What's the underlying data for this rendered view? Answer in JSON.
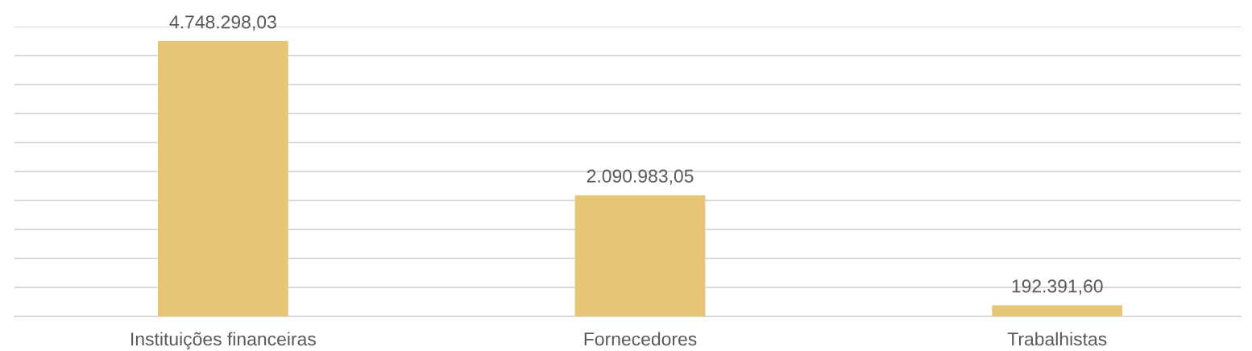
{
  "chart_data": {
    "type": "bar",
    "categories": [
      "Instituições financeiras",
      "Fornecedores",
      "Trabalhistas"
    ],
    "values": [
      4748298.03,
      2090983.05,
      192391.6
    ],
    "value_labels": [
      "4.748.298,03",
      "2.090.983,05",
      "192.391,60"
    ],
    "color": "#e6c577",
    "ylim": [
      0,
      5000000
    ],
    "yticks": [
      {
        "value": 0,
        "label": null
      },
      {
        "value": 500000,
        "label": null
      },
      {
        "value": 1000000,
        "label": null
      },
      {
        "value": 1500000,
        "label": null
      },
      {
        "value": 2000000,
        "label": null
      },
      {
        "value": 2500000,
        "label": null
      },
      {
        "value": 3000000,
        "label": null
      },
      {
        "value": 3500000,
        "label": null
      },
      {
        "value": 4000000,
        "label": null
      },
      {
        "value": 4500000,
        "label": null
      },
      {
        "value": 5000000,
        "label": null
      }
    ],
    "grid": "y",
    "tick_labels": "x"
  }
}
